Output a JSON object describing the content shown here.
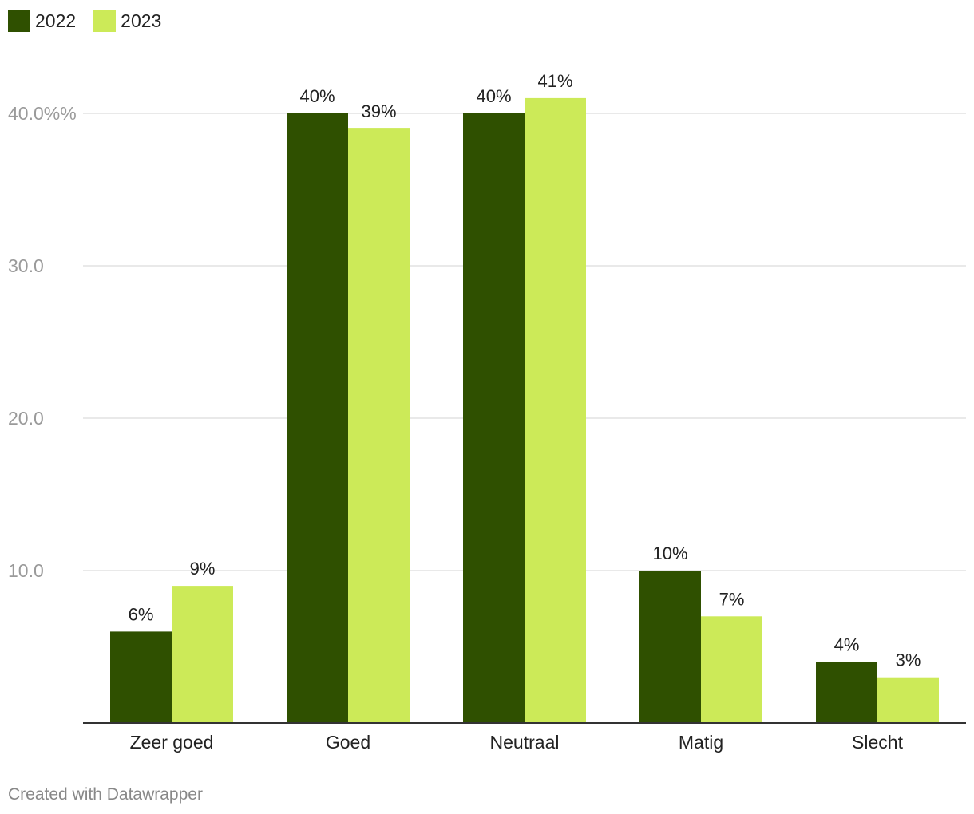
{
  "chart_data": {
    "type": "bar",
    "title": "",
    "xlabel": "",
    "ylabel": "",
    "categories": [
      "Zeer goed",
      "Goed",
      "Neutraal",
      "Matig",
      "Slecht"
    ],
    "series": [
      {
        "name": "2022",
        "color": "#2f5000",
        "values": [
          6,
          40,
          40,
          10,
          4
        ]
      },
      {
        "name": "2023",
        "color": "#ccea58",
        "values": [
          9,
          39,
          41,
          7,
          3
        ]
      }
    ],
    "value_labels": [
      [
        "6%",
        "40%",
        "40%",
        "10%",
        "4%"
      ],
      [
        "9%",
        "39%",
        "41%",
        "7%",
        "3%"
      ]
    ],
    "ylim": [
      0,
      40
    ],
    "yticks": [
      10,
      20,
      30,
      40
    ],
    "ytick_labels": [
      "10.0",
      "20.0",
      "30.0",
      "40.0%%"
    ],
    "grid": true,
    "legend_position": "top-left"
  },
  "footer": {
    "credit": "Created with Datawrapper"
  }
}
